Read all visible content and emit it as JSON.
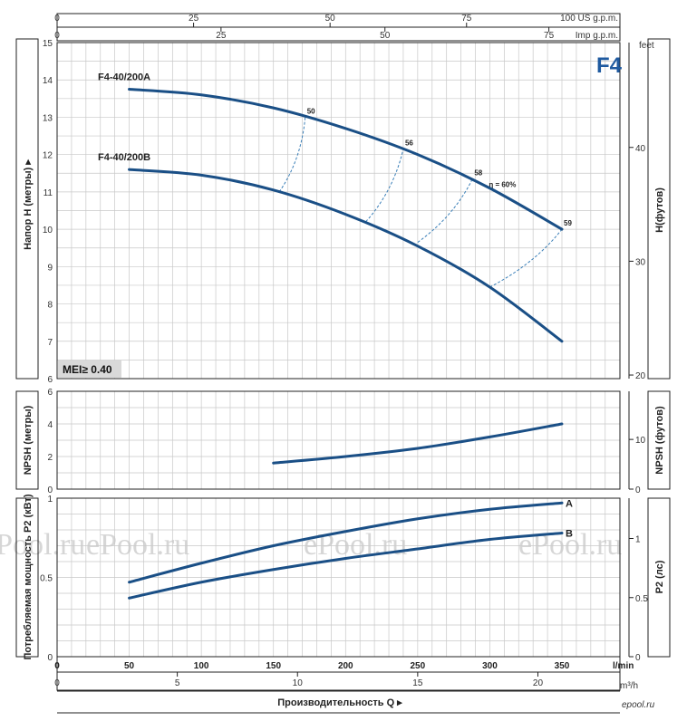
{
  "chart_data": [
    {
      "type": "line",
      "panel": "head",
      "title": "",
      "badge": "F4",
      "mei_label": "MEI≥ 0.40",
      "ylabel": "Напор H (метры)",
      "ylabel_right": "H(футов)",
      "right_unit_top": "feet",
      "ylim": [
        6,
        15
      ],
      "yticks": [
        "6",
        "7",
        "8",
        "9",
        "10",
        "11",
        "12",
        "13",
        "14",
        "15"
      ],
      "yticks_right": [
        "20",
        "30",
        "40"
      ],
      "series": [
        {
          "name": "F4-40/200A",
          "x": [
            50,
            100,
            150,
            200,
            250,
            300,
            350
          ],
          "y": [
            13.75,
            13.6,
            13.25,
            12.7,
            12.0,
            11.1,
            10.0
          ]
        },
        {
          "name": "F4-40/200B",
          "x": [
            50,
            100,
            150,
            200,
            250,
            300,
            350
          ],
          "y": [
            11.6,
            11.45,
            11.05,
            10.4,
            9.55,
            8.45,
            7.0
          ]
        }
      ],
      "efficiency": {
        "eta_label": "η = 60%",
        "points": [
          {
            "label": "50",
            "a": [
              172,
              13.0
            ],
            "b": [
              154,
              11.0
            ]
          },
          {
            "label": "56",
            "a": [
              240,
              12.15
            ],
            "b": [
              214,
              10.2
            ]
          },
          {
            "label": "58",
            "a": [
              288,
              11.35
            ],
            "b": [
              250,
              9.65
            ]
          },
          {
            "label": "59",
            "a": [
              350,
              10.0
            ],
            "b": [
              300,
              8.45
            ]
          }
        ]
      }
    },
    {
      "type": "line",
      "panel": "npsh",
      "ylabel": "NPSH (метры)",
      "ylabel_right": "NPSH (футов)",
      "ylim": [
        0,
        6
      ],
      "yticks": [
        "0",
        "2",
        "4",
        "6"
      ],
      "yticks_right": [
        "0",
        "10"
      ],
      "series": [
        {
          "name": "NPSH",
          "x": [
            150,
            200,
            250,
            300,
            350
          ],
          "y": [
            1.6,
            2.0,
            2.5,
            3.2,
            4.0
          ]
        }
      ]
    },
    {
      "type": "line",
      "panel": "power",
      "ylabel": "Потребляемая мощность P2 (кВт)",
      "ylabel_right": "P2 (лс)",
      "ylim": [
        0,
        1
      ],
      "yticks": [
        "0",
        "0.5",
        "1"
      ],
      "yticks_right": [
        "0",
        "0.5",
        "1"
      ],
      "series": [
        {
          "name": "A",
          "x": [
            50,
            100,
            150,
            200,
            250,
            300,
            350
          ],
          "y": [
            0.47,
            0.59,
            0.7,
            0.79,
            0.87,
            0.93,
            0.97
          ]
        },
        {
          "name": "B",
          "x": [
            50,
            100,
            150,
            200,
            250,
            300,
            350
          ],
          "y": [
            0.37,
            0.47,
            0.55,
            0.62,
            0.68,
            0.74,
            0.78
          ]
        }
      ]
    }
  ],
  "axes": {
    "x_lmin": {
      "unit": "l/min",
      "ticks": [
        "0",
        "50",
        "100",
        "150",
        "200",
        "250",
        "300",
        "350"
      ]
    },
    "x_m3h": {
      "unit": "m³/h",
      "ticks": [
        "0",
        "5",
        "10",
        "15",
        "20"
      ]
    },
    "x_usgpm": {
      "unit": "100 US g.p.m.",
      "ticks": [
        "0",
        "25",
        "50",
        "75"
      ]
    },
    "x_impgpm": {
      "unit": "Imp g.p.m.",
      "ticks": [
        "0",
        "25",
        "50",
        "75"
      ]
    },
    "xlabel": "Производительность Q"
  },
  "watermarks": [
    "ePool.ru",
    "ePool.ru",
    "ePool.ru",
    "ePool.ru"
  ],
  "footer_logo": "epool.ru",
  "colors": {
    "curve": "#1a4f86",
    "grid": "#c8c8c8",
    "badge": "#1f5aa0",
    "mei_bg": "#d9d9d9"
  }
}
